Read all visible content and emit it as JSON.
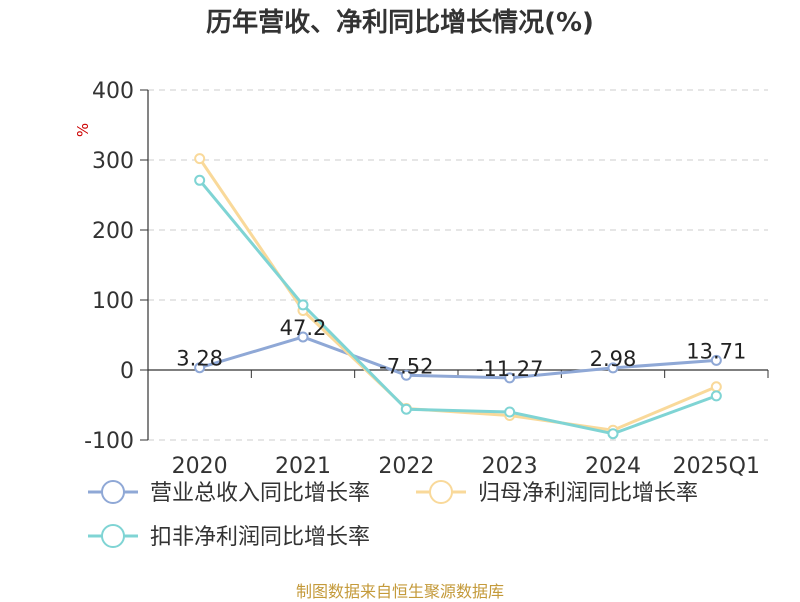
{
  "chart_data": {
    "type": "line",
    "title": "历年营收、净利同比增长情况(%)",
    "xlabel": "",
    "ylabel": "%",
    "categories": [
      "2020",
      "2021",
      "2022",
      "2023",
      "2024",
      "2025Q1"
    ],
    "ylim": [
      -100,
      400
    ],
    "yticks": [
      400,
      300,
      200,
      100,
      0,
      -100
    ],
    "grid": true,
    "legend_position": "bottom",
    "series": [
      {
        "name": "营业总收入同比增长率",
        "color": "#8fa8d6",
        "values": [
          3.28,
          47.2,
          -7.52,
          -11.27,
          2.98,
          13.71
        ],
        "labels": [
          "3.28",
          "47.2",
          "-7.52",
          "-11.27",
          "2.98",
          "13.71"
        ]
      },
      {
        "name": "归母净利润同比增长率",
        "color": "#f9d99a",
        "values": [
          302,
          85,
          -55,
          -65,
          -86,
          -24
        ]
      },
      {
        "name": "扣非净利润同比增长率",
        "color": "#7fd4d4",
        "values": [
          271,
          93,
          -56,
          -60,
          -91,
          -37
        ]
      }
    ]
  },
  "source_note": "制图数据来自恒生聚源数据库"
}
